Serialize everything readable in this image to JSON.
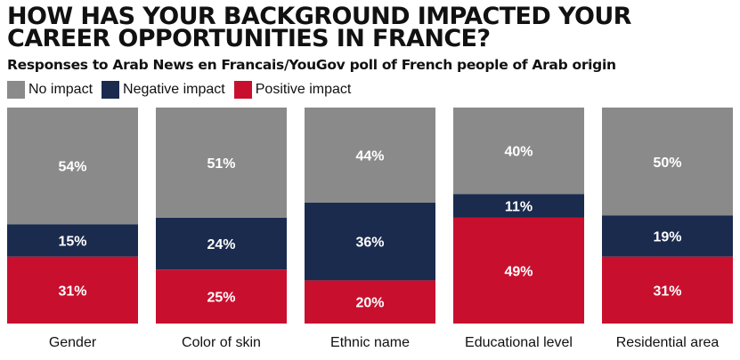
{
  "chart_data": {
    "type": "bar",
    "stacked": true,
    "orientation": "vertical",
    "title": "HOW HAS YOUR BACKGROUND IMPACTED YOUR CAREER OPPORTUNITIES IN FRANCE?",
    "subtitle": "Responses to Arab News en Francais/YouGov poll of French people of Arab origin",
    "categories": [
      "Gender",
      "Color of skin",
      "Ethnic name",
      "Educational level",
      "Residential area"
    ],
    "series": [
      {
        "name": "Positive impact",
        "color": "#c8102e",
        "values": [
          31,
          25,
          20,
          49,
          31
        ],
        "labels": [
          "31%",
          "25%",
          "20%",
          "49%",
          "31%"
        ]
      },
      {
        "name": "Negative impact",
        "color": "#1a2b4e",
        "values": [
          15,
          24,
          36,
          11,
          19
        ],
        "labels": [
          "15%",
          "24%",
          "36%",
          "11%",
          "19%"
        ]
      },
      {
        "name": "No impact",
        "color": "#8a8a8a",
        "values": [
          54,
          51,
          44,
          40,
          50
        ],
        "labels": [
          "54%",
          "51%",
          "44%",
          "40%",
          "50%"
        ]
      }
    ],
    "legend_order": [
      "No impact",
      "Negative impact",
      "Positive impact"
    ],
    "legend_position": "top-left",
    "grid": false,
    "ylim": [
      0,
      100
    ]
  }
}
